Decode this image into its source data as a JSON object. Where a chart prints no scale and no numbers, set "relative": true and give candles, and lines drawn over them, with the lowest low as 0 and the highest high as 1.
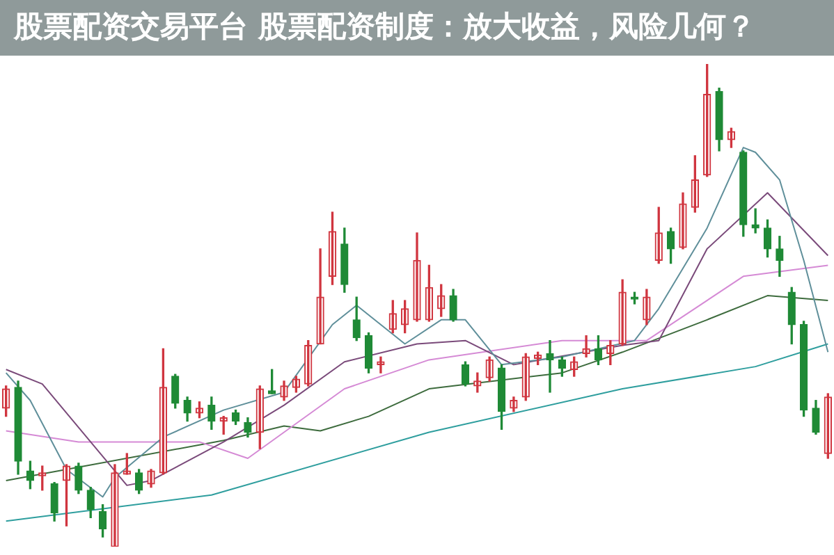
{
  "chart_data": {
    "type": "candlestick",
    "title": "股票配资交易平台 股票配资制度：放大收益，风险几何？",
    "relative": true,
    "tick_labels": false,
    "categories": [
      null,
      null,
      null,
      null,
      null,
      null,
      null,
      null,
      null,
      null,
      null,
      null,
      null,
      null,
      null,
      null,
      null,
      null,
      null,
      null,
      null,
      null,
      null,
      null,
      null,
      null,
      null,
      null,
      null,
      null,
      null,
      null,
      null,
      null,
      null,
      null,
      null,
      null,
      null,
      null,
      null,
      null,
      null,
      null,
      null,
      null,
      null,
      null,
      null,
      null,
      null,
      null,
      null,
      null,
      null,
      null,
      null,
      null,
      null,
      null,
      null,
      null,
      null,
      null,
      null,
      null,
      null,
      null,
      null
    ],
    "ohlc": [
      [
        0.287,
        0.333,
        0.27,
        0.327
      ],
      [
        0.33,
        0.343,
        0.15,
        0.177
      ],
      [
        0.157,
        0.177,
        0.12,
        0.137
      ],
      [
        0.147,
        0.167,
        0.117,
        0.153
      ],
      [
        0.13,
        0.133,
        0.053,
        0.07
      ],
      [
        0.137,
        0.17,
        0.043,
        0.167
      ],
      [
        0.167,
        0.173,
        0.11,
        0.117
      ],
      [
        0.117,
        0.123,
        0.06,
        0.077
      ],
      [
        0.073,
        0.087,
        0.02,
        0.037
      ],
      [
        0,
        0.17,
        0,
        0.153
      ],
      [
        0.15,
        0.193,
        0.15,
        0.157
      ],
      [
        0.153,
        0.16,
        0.11,
        0.117
      ],
      [
        0.13,
        0.16,
        0.123,
        0.157
      ],
      [
        0.153,
        0.41,
        0.15,
        0.33
      ],
      [
        0.353,
        0.357,
        0.287,
        0.297
      ],
      [
        0.303,
        0.31,
        0.26,
        0.277
      ],
      [
        0.277,
        0.3,
        0.267,
        0.287
      ],
      [
        0.293,
        0.31,
        0.243,
        0.26
      ],
      [
        0.26,
        0.27,
        0.233,
        0.267
      ],
      [
        0.277,
        0.283,
        0.253,
        0.26
      ],
      [
        0.257,
        0.267,
        0.227,
        0.237
      ],
      [
        0.237,
        0.333,
        0.203,
        0.327
      ],
      [
        0.323,
        0.367,
        0.317,
        0.317
      ],
      [
        0.31,
        0.343,
        0.303,
        0.333
      ],
      [
        0.33,
        0.353,
        0.32,
        0.347
      ],
      [
        0.337,
        0.427,
        0.333,
        0.417
      ],
      [
        0.42,
        0.617,
        0.42,
        0.517
      ],
      [
        0.56,
        0.693,
        0.543,
        0.653
      ],
      [
        0.627,
        0.66,
        0.527,
        0.543
      ],
      [
        0.47,
        0.517,
        0.427,
        0.433
      ],
      [
        0.437,
        0.443,
        0.36,
        0.37
      ],
      [
        0.377,
        0.393,
        0.36,
        0.383
      ],
      [
        0.45,
        0.51,
        0.443,
        0.483
      ],
      [
        0.46,
        0.51,
        0.443,
        0.493
      ],
      [
        0.47,
        0.65,
        0.467,
        0.593
      ],
      [
        0.47,
        0.583,
        0.467,
        0.537
      ],
      [
        0.493,
        0.543,
        0.477,
        0.52
      ],
      [
        0.52,
        0.533,
        0.467,
        0.47
      ],
      [
        0.377,
        0.383,
        0.333,
        0.337
      ],
      [
        0.333,
        0.36,
        0.32,
        0.343
      ],
      [
        0.35,
        0.393,
        0.343,
        0.387
      ],
      [
        0.37,
        0.377,
        0.243,
        0.28
      ],
      [
        0.287,
        0.31,
        0.28,
        0.303
      ],
      [
        0.31,
        0.4,
        0.303,
        0.393
      ],
      [
        0.39,
        0.403,
        0.377,
        0.397
      ],
      [
        0.4,
        0.427,
        0.32,
        0.387
      ],
      [
        0.387,
        0.393,
        0.353,
        0.37
      ],
      [
        0.367,
        0.393,
        0.353,
        0.383
      ],
      [
        0.4,
        0.437,
        0.393,
        0.41
      ],
      [
        0.41,
        0.437,
        0.377,
        0.387
      ],
      [
        0.4,
        0.427,
        0.377,
        0.417
      ],
      [
        0.42,
        0.553,
        0.417,
        0.527
      ],
      [
        0.517,
        0.527,
        0.503,
        0.513
      ],
      [
        0.47,
        0.533,
        0.46,
        0.517
      ],
      [
        0.593,
        0.703,
        0.587,
        0.65
      ],
      [
        0.653,
        0.66,
        0.587,
        0.617
      ],
      [
        0.62,
        0.733,
        0.617,
        0.71
      ],
      [
        0.703,
        0.81,
        0.693,
        0.76
      ],
      [
        0.77,
        1,
        0.767,
        0.937
      ],
      [
        0.943,
        0.95,
        0.82,
        0.843
      ],
      [
        0.843,
        0.867,
        0.827,
        0.86
      ],
      [
        0.817,
        0.82,
        0.643,
        0.667
      ],
      [
        0.667,
        0.7,
        0.65,
        0.66
      ],
      [
        0.66,
        0.677,
        0.6,
        0.617
      ],
      [
        0.617,
        0.643,
        0.56,
        0.593
      ],
      [
        0.527,
        0.537,
        0.42,
        0.46
      ],
      [
        0.46,
        0.467,
        0.27,
        0.283
      ],
      [
        0.287,
        0.303,
        0.233,
        0.237
      ],
      [
        0.193,
        0.317,
        0.183,
        0.31
      ]
    ],
    "colors": [
      "#d0353f",
      "#1f8a36",
      "#1f8a36",
      "#d0353f",
      "#1f8a36",
      "#d0353f",
      "#1f8a36",
      "#1f8a36",
      "#1f8a36",
      "#d0353f",
      "#d0353f",
      "#1f8a36",
      "#d0353f",
      "#d0353f",
      "#1f8a36",
      "#1f8a36",
      "#d0353f",
      "#1f8a36",
      "#d0353f",
      "#1f8a36",
      "#1f8a36",
      "#d0353f",
      "#1f8a36",
      "#d0353f",
      "#d0353f",
      "#d0353f",
      "#d0353f",
      "#d0353f",
      "#1f8a36",
      "#1f8a36",
      "#1f8a36",
      "#d0353f",
      "#d0353f",
      "#d0353f",
      "#d0353f",
      "#d0353f",
      "#d0353f",
      "#1f8a36",
      "#1f8a36",
      "#d0353f",
      "#d0353f",
      "#1f8a36",
      "#d0353f",
      "#d0353f",
      "#d0353f",
      "#1f8a36",
      "#1f8a36",
      "#d0353f",
      "#d0353f",
      "#1f8a36",
      "#d0353f",
      "#d0353f",
      "#1f8a36",
      "#d0353f",
      "#d0353f",
      "#1f8a36",
      "#d0353f",
      "#d0353f",
      "#d0353f",
      "#1f8a36",
      "#d0353f",
      "#1f8a36",
      "#1f8a36",
      "#1f8a36",
      "#1f8a36",
      "#1f8a36",
      "#1f8a36",
      "#1f8a36",
      "#d0353f"
    ],
    "series": [
      {
        "type": "line",
        "color": "#5f8f9a",
        "values": [
          0.36,
          null,
          0.303,
          null,
          null,
          0.16,
          null,
          null,
          0.103,
          0.143,
          null,
          null,
          null,
          0.227,
          null,
          null,
          null,
          null,
          0.283,
          null,
          null,
          null,
          null,
          0.32,
          null,
          null,
          null,
          0.46,
          null,
          0.5,
          null,
          null,
          null,
          0.42,
          null,
          null,
          0.47,
          null,
          0.47,
          null,
          null,
          0.377,
          null,
          null,
          null,
          null,
          0.393,
          null,
          null,
          null,
          null,
          null,
          0.427,
          null,
          0.493,
          null,
          null,
          null,
          0.66,
          null,
          null,
          0.827,
          0.817,
          null,
          0.76,
          null,
          0.593,
          null,
          0.403
        ]
      },
      {
        "type": "line",
        "color": "#7a4a7a",
        "values": [
          0.367,
          null,
          null,
          0.337,
          null,
          null,
          null,
          null,
          null,
          null,
          0.127,
          null,
          0.137,
          null,
          null,
          null,
          null,
          null,
          0.217,
          null,
          null,
          null,
          null,
          0.293,
          null,
          null,
          null,
          null,
          0.383,
          null,
          null,
          null,
          null,
          null,
          0.42,
          null,
          null,
          null,
          0.427,
          null,
          null,
          null,
          0.377,
          null,
          null,
          null,
          null,
          null,
          null,
          null,
          null,
          0.417,
          null,
          null,
          0.427,
          null,
          null,
          null,
          0.617,
          null,
          null,
          null,
          null,
          0.733,
          null,
          null,
          null,
          null,
          0.603
        ]
      },
      {
        "type": "line",
        "color": "#d58ad5",
        "values": [
          0.24,
          null,
          null,
          null,
          null,
          null,
          0.217,
          null,
          null,
          null,
          null,
          null,
          null,
          null,
          null,
          null,
          0.217,
          null,
          null,
          null,
          0.183,
          null,
          null,
          null,
          null,
          null,
          null,
          null,
          0.327,
          null,
          null,
          null,
          null,
          null,
          null,
          0.387,
          null,
          null,
          null,
          null,
          null,
          null,
          null,
          null,
          null,
          null,
          0.427,
          null,
          null,
          null,
          null,
          null,
          null,
          0.427,
          null,
          null,
          null,
          null,
          null,
          null,
          null,
          0.56,
          null,
          null,
          null,
          null,
          null,
          null,
          0.583
        ]
      },
      {
        "type": "line",
        "color": "#3d6b3d",
        "values": [
          0.137,
          null,
          null,
          null,
          null,
          null,
          null,
          null,
          null,
          null,
          null,
          null,
          null,
          null,
          null,
          null,
          null,
          null,
          0.22,
          null,
          null,
          null,
          null,
          0.25,
          null,
          null,
          0.24,
          null,
          null,
          null,
          0.27,
          null,
          null,
          null,
          null,
          0.327,
          null,
          null,
          null,
          null,
          null,
          null,
          null,
          null,
          null,
          null,
          0.36,
          null,
          null,
          null,
          null,
          0.403,
          null,
          null,
          null,
          null,
          null,
          null,
          0.47,
          null,
          null,
          null,
          null,
          0.52,
          null,
          null,
          null,
          null,
          0.51
        ]
      },
      {
        "type": "line",
        "color": "#2e9e9e",
        "values": [
          0.053,
          null,
          null,
          null,
          null,
          null,
          null,
          null,
          null,
          null,
          null,
          null,
          null,
          null,
          null,
          null,
          null,
          0.107,
          null,
          null,
          null,
          null,
          null,
          null,
          null,
          null,
          null,
          null,
          null,
          null,
          null,
          null,
          null,
          null,
          null,
          0.237,
          null,
          null,
          null,
          null,
          null,
          null,
          null,
          null,
          null,
          null,
          null,
          null,
          null,
          null,
          null,
          0.327,
          null,
          null,
          null,
          null,
          null,
          null,
          null,
          null,
          null,
          null,
          0.373,
          null,
          null,
          null,
          null,
          null,
          0.42
        ]
      }
    ]
  }
}
